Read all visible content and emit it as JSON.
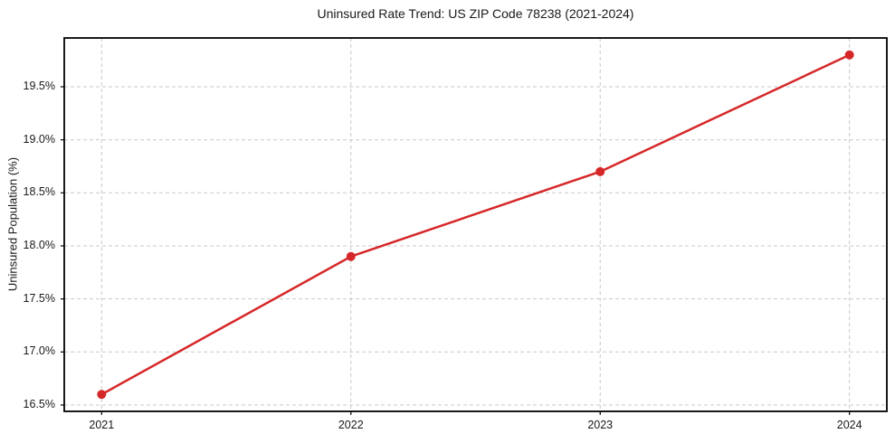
{
  "chart_data": {
    "type": "line",
    "title": "Uninsured Rate Trend: US ZIP Code 78238 (2021-2024)",
    "xlabel": "",
    "ylabel": "Uninsured Population (%)",
    "x": [
      2021,
      2022,
      2023,
      2024
    ],
    "series": [
      {
        "name": "Uninsured rate",
        "values": [
          16.6,
          17.9,
          18.7,
          19.8
        ],
        "color": "#d62728",
        "line_width": 2.5,
        "marker": "circle",
        "marker_radius": 5
      }
    ],
    "xlim": [
      2020.85,
      2024.15
    ],
    "ylim": [
      16.44,
      19.96
    ],
    "xticks": [
      2021,
      2022,
      2023,
      2024
    ],
    "xtick_labels": [
      "2021",
      "2022",
      "2023",
      "2024"
    ],
    "yticks": [
      16.5,
      17.0,
      17.5,
      18.0,
      18.5,
      19.0,
      19.5
    ],
    "ytick_labels": [
      "16.5%",
      "17.0%",
      "17.5%",
      "18.0%",
      "18.5%",
      "19.0%",
      "19.5%"
    ],
    "grid": true,
    "grid_color": "#c9c9c9",
    "grid_dash": "4,3",
    "legend": "none",
    "spine_color": "#000000",
    "tick_color": "#000000",
    "text_color": "#1a1a1a",
    "background_color": "#ffffff"
  }
}
